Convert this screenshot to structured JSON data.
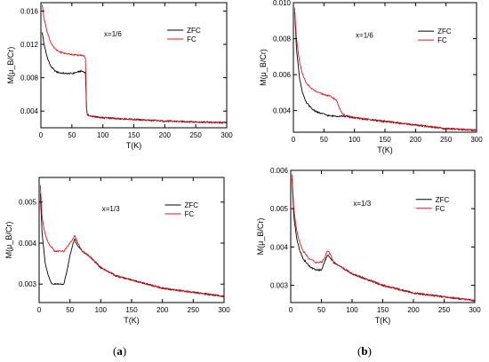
{
  "captions": {
    "a_open": "(",
    "a_letter": "a",
    "a_close": ")",
    "b_open": "(",
    "b_letter": "b",
    "b_close": ")"
  },
  "chart_data": [
    {
      "id": "top-left",
      "type": "line",
      "annotation": "x=1/6",
      "xlabel": "T(K)",
      "ylabel": "M(μ_B/Cr)",
      "xlim": [
        0,
        300
      ],
      "ylim": [
        0.002,
        0.017
      ],
      "xticks": [
        0,
        50,
        100,
        150,
        200,
        250,
        300
      ],
      "yticks": [
        0.004,
        0.008,
        0.012,
        0.016
      ],
      "ytick_labels": [
        "0.004",
        "0.008",
        "0.012",
        "0.016"
      ],
      "legend": "top-right",
      "series": [
        {
          "name": "ZFC",
          "color": "#000000",
          "x": [
            2,
            5,
            10,
            15,
            20,
            25,
            30,
            40,
            50,
            60,
            65,
            70,
            72,
            74,
            80,
            100,
            150,
            200,
            250,
            300
          ],
          "y": [
            0.0135,
            0.012,
            0.0105,
            0.0095,
            0.009,
            0.0087,
            0.0086,
            0.0085,
            0.0085,
            0.0087,
            0.0088,
            0.0087,
            0.0085,
            0.0036,
            0.0034,
            0.0032,
            0.003,
            0.0028,
            0.0027,
            0.0026
          ]
        },
        {
          "name": "FC",
          "color": "#e8121b",
          "x": [
            2,
            5,
            10,
            15,
            20,
            25,
            30,
            40,
            50,
            60,
            65,
            70,
            72,
            74,
            80,
            100,
            150,
            200,
            250,
            300
          ],
          "y": [
            0.0168,
            0.0152,
            0.0135,
            0.0124,
            0.0117,
            0.0113,
            0.0111,
            0.0109,
            0.0108,
            0.0107,
            0.0107,
            0.0106,
            0.0103,
            0.0037,
            0.0034,
            0.0032,
            0.003,
            0.0028,
            0.0027,
            0.0026
          ]
        }
      ]
    },
    {
      "id": "top-right",
      "type": "line",
      "annotation": "x=1/6",
      "xlabel": "T(K)",
      "ylabel": "M(μ_B/Cr)",
      "xlim": [
        0,
        300
      ],
      "ylim": [
        0.0028,
        0.01
      ],
      "xticks": [
        0,
        50,
        100,
        150,
        200,
        250,
        300
      ],
      "yticks": [
        0.004,
        0.006,
        0.008,
        0.01
      ],
      "ytick_labels": [
        "0.004",
        "0.006",
        "0.008",
        "0.010"
      ],
      "legend": "top-right",
      "series": [
        {
          "name": "ZFC",
          "color": "#000000",
          "x": [
            2,
            5,
            10,
            15,
            20,
            30,
            40,
            50,
            60,
            70,
            80,
            100,
            150,
            200,
            250,
            300
          ],
          "y": [
            0.0095,
            0.0075,
            0.0058,
            0.005,
            0.0045,
            0.0041,
            0.0039,
            0.0038,
            0.0037,
            0.0037,
            0.0037,
            0.0036,
            0.0034,
            0.0032,
            0.003,
            0.0029
          ]
        },
        {
          "name": "FC",
          "color": "#e8121b",
          "x": [
            2,
            5,
            10,
            15,
            20,
            30,
            40,
            50,
            60,
            70,
            75,
            80,
            100,
            150,
            200,
            250,
            300
          ],
          "y": [
            0.0097,
            0.008,
            0.0067,
            0.006,
            0.0056,
            0.0052,
            0.005,
            0.0049,
            0.0048,
            0.0046,
            0.0042,
            0.0038,
            0.0036,
            0.0034,
            0.0032,
            0.003,
            0.0029
          ]
        }
      ]
    },
    {
      "id": "bottom-left",
      "type": "line",
      "annotation": "x=1/3",
      "xlabel": "T(K)",
      "ylabel": "M(μ_B/Cr)",
      "xlim": [
        0,
        300
      ],
      "ylim": [
        0.00255,
        0.0056
      ],
      "xticks": [
        0,
        50,
        100,
        150,
        200,
        250,
        300
      ],
      "yticks": [
        0.003,
        0.004,
        0.005
      ],
      "ytick_labels": [
        "0.003",
        "0.004",
        "0.005"
      ],
      "legend": "top-right",
      "series": [
        {
          "name": "ZFC",
          "color": "#000000",
          "x": [
            2,
            5,
            10,
            15,
            20,
            25,
            30,
            35,
            40,
            45,
            50,
            55,
            58,
            60,
            70,
            80,
            100,
            125,
            150,
            175,
            200,
            250,
            300
          ],
          "y": [
            0.0052,
            0.0042,
            0.0035,
            0.0032,
            0.003,
            0.003,
            0.003,
            0.003,
            0.003,
            0.0033,
            0.0037,
            0.004,
            0.0041,
            0.004,
            0.0038,
            0.0037,
            0.0034,
            0.0032,
            0.0031,
            0.003,
            0.0029,
            0.0028,
            0.0027
          ]
        },
        {
          "name": "FC",
          "color": "#e8121b",
          "x": [
            2,
            5,
            10,
            15,
            20,
            25,
            30,
            35,
            40,
            45,
            50,
            55,
            58,
            60,
            70,
            80,
            100,
            125,
            150,
            175,
            200,
            250,
            300
          ],
          "y": [
            0.0054,
            0.0046,
            0.0042,
            0.004,
            0.0039,
            0.0038,
            0.0038,
            0.0038,
            0.0038,
            0.0039,
            0.004,
            0.0041,
            0.0042,
            0.0041,
            0.0038,
            0.0037,
            0.0034,
            0.0032,
            0.0031,
            0.003,
            0.0029,
            0.0028,
            0.0027
          ]
        }
      ]
    },
    {
      "id": "bottom-right",
      "type": "line",
      "annotation": "x=1/3",
      "xlabel": "T(K)",
      "ylabel": "M(μ_B/Cr)",
      "xlim": [
        0,
        300
      ],
      "ylim": [
        0.00255,
        0.006
      ],
      "xticks": [
        0,
        50,
        100,
        150,
        200,
        250,
        300
      ],
      "yticks": [
        0.003,
        0.004,
        0.005,
        0.006
      ],
      "ytick_labels": [
        "0.003",
        "0.004",
        "0.005",
        "0.006"
      ],
      "legend": "top-right",
      "series": [
        {
          "name": "ZFC",
          "color": "#000000",
          "x": [
            2,
            5,
            10,
            15,
            20,
            30,
            40,
            50,
            55,
            60,
            65,
            70,
            80,
            100,
            150,
            200,
            250,
            300
          ],
          "y": [
            0.0058,
            0.0048,
            0.0042,
            0.0039,
            0.0037,
            0.0035,
            0.0034,
            0.0034,
            0.0036,
            0.0038,
            0.0037,
            0.0036,
            0.0035,
            0.0033,
            0.003,
            0.0028,
            0.0027,
            0.0026
          ]
        },
        {
          "name": "FC",
          "color": "#e8121b",
          "x": [
            2,
            5,
            10,
            15,
            20,
            30,
            40,
            50,
            55,
            60,
            65,
            70,
            80,
            100,
            150,
            200,
            250,
            300
          ],
          "y": [
            0.0059,
            0.005,
            0.0044,
            0.0041,
            0.0039,
            0.0037,
            0.0036,
            0.0036,
            0.0037,
            0.0039,
            0.0038,
            0.0036,
            0.0035,
            0.0033,
            0.003,
            0.0028,
            0.0027,
            0.0026
          ]
        }
      ]
    }
  ]
}
